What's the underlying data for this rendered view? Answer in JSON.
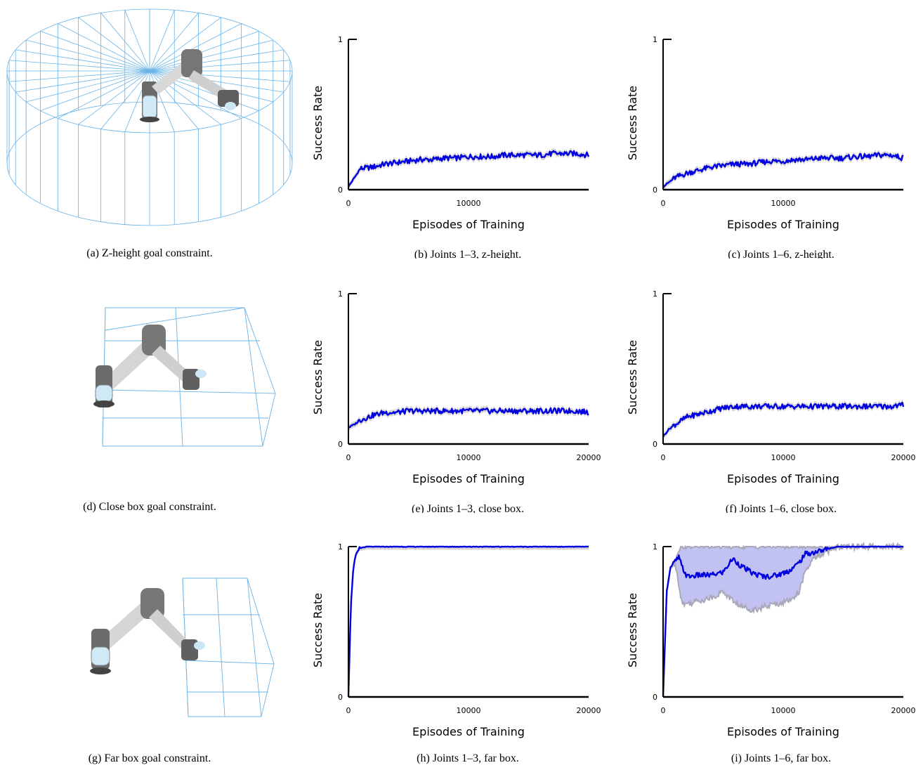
{
  "captions": {
    "a": "(a) Z-height goal constraint.",
    "b": "(b) Joints 1–3, z-height.",
    "c": "(c) Joints 1–6, z-height.",
    "d": "(d) Close box goal constraint.",
    "e": "(e) Joints 1–3, close box.",
    "f": "(f) Joints 1–6, close box.",
    "g": "(g) Far box goal constraint.",
    "h": "(h) Joints 1–3, far box.",
    "i": "(i) Joints 1–6, far box."
  },
  "colors": {
    "line": "#0000e0",
    "band": "#b7b7f0",
    "band_edge": "#a8a8b8",
    "cage": "#5aa8e0",
    "robot": "#7a7a7a"
  },
  "chart_data": [
    {
      "id": "b",
      "type": "line",
      "xlabel": "Episodes of Training",
      "ylabel": "Success Rate",
      "xlim": [
        0,
        20000
      ],
      "ylim": [
        0,
        1
      ],
      "xticks": [
        "0",
        "10000"
      ],
      "yticks": [
        "0",
        "1"
      ],
      "series": [
        {
          "x": [
            0,
            500,
            1000,
            2000,
            3000,
            4000,
            5000,
            6000,
            7000,
            8000,
            9000,
            10000,
            11000,
            12000,
            13000,
            14000,
            15000,
            16000,
            17000,
            18000,
            19000,
            20000
          ],
          "y": [
            0.02,
            0.08,
            0.14,
            0.15,
            0.17,
            0.18,
            0.19,
            0.2,
            0.2,
            0.21,
            0.21,
            0.22,
            0.22,
            0.22,
            0.23,
            0.23,
            0.23,
            0.23,
            0.24,
            0.24,
            0.24,
            0.23
          ]
        }
      ]
    },
    {
      "id": "c",
      "type": "line",
      "xlabel": "Episodes of Training",
      "ylabel": "Success Rate",
      "xlim": [
        0,
        20000
      ],
      "ylim": [
        0,
        1
      ],
      "xticks": [
        "0",
        "10000"
      ],
      "yticks": [
        "0",
        "1"
      ],
      "series": [
        {
          "x": [
            0,
            500,
            1000,
            2000,
            3000,
            4000,
            5000,
            6000,
            7000,
            8000,
            9000,
            10000,
            11000,
            12000,
            13000,
            14000,
            15000,
            16000,
            17000,
            18000,
            19000,
            20000
          ],
          "y": [
            0.02,
            0.05,
            0.08,
            0.11,
            0.13,
            0.15,
            0.16,
            0.17,
            0.17,
            0.18,
            0.19,
            0.19,
            0.2,
            0.2,
            0.21,
            0.21,
            0.21,
            0.22,
            0.22,
            0.23,
            0.23,
            0.21
          ]
        }
      ]
    },
    {
      "id": "e",
      "type": "line",
      "xlabel": "Episodes of Training",
      "ylabel": "Success Rate",
      "xlim": [
        0,
        20000
      ],
      "ylim": [
        0,
        1
      ],
      "xticks": [
        "0",
        "10000",
        "20000"
      ],
      "yticks": [
        "0",
        "1"
      ],
      "series": [
        {
          "x": [
            0,
            500,
            1000,
            2000,
            3000,
            4000,
            5000,
            6000,
            7000,
            8000,
            9000,
            10000,
            11000,
            12000,
            13000,
            14000,
            15000,
            16000,
            17000,
            18000,
            19000,
            20000
          ],
          "y": [
            0.11,
            0.13,
            0.16,
            0.19,
            0.21,
            0.21,
            0.22,
            0.22,
            0.22,
            0.22,
            0.22,
            0.22,
            0.22,
            0.22,
            0.22,
            0.22,
            0.22,
            0.22,
            0.22,
            0.22,
            0.22,
            0.21
          ]
        }
      ]
    },
    {
      "id": "f",
      "type": "line",
      "xlabel": "Episodes of Training",
      "ylabel": "Success Rate",
      "xlim": [
        0,
        20000
      ],
      "ylim": [
        0,
        1
      ],
      "xticks": [
        "0",
        "10000",
        "20000"
      ],
      "yticks": [
        "0",
        "1"
      ],
      "series": [
        {
          "x": [
            0,
            500,
            1000,
            2000,
            3000,
            4000,
            5000,
            6000,
            7000,
            8000,
            9000,
            10000,
            11000,
            12000,
            13000,
            14000,
            15000,
            16000,
            17000,
            18000,
            19000,
            20000
          ],
          "y": [
            0.05,
            0.1,
            0.13,
            0.18,
            0.2,
            0.22,
            0.24,
            0.25,
            0.25,
            0.25,
            0.25,
            0.25,
            0.25,
            0.25,
            0.25,
            0.25,
            0.25,
            0.25,
            0.25,
            0.25,
            0.25,
            0.26
          ]
        }
      ]
    },
    {
      "id": "h",
      "type": "line",
      "xlabel": "Episodes of Training",
      "ylabel": "Success Rate",
      "xlim": [
        0,
        20000
      ],
      "ylim": [
        0,
        1
      ],
      "xticks": [
        "0",
        "10000",
        "20000"
      ],
      "yticks": [
        "0",
        "1"
      ],
      "series": [
        {
          "x": [
            0,
            200,
            400,
            600,
            800,
            1000,
            1500,
            2000,
            4000,
            6000,
            8000,
            10000,
            12000,
            14000,
            16000,
            18000,
            20000
          ],
          "y": [
            0,
            0.6,
            0.85,
            0.94,
            0.97,
            0.99,
            1,
            1,
            1,
            1,
            1,
            1,
            1,
            1,
            1,
            1,
            1
          ]
        }
      ]
    },
    {
      "id": "i",
      "type": "line",
      "xlabel": "Episodes of Training",
      "ylabel": "Success Rate",
      "xlim": [
        0,
        20000
      ],
      "ylim": [
        0,
        1
      ],
      "xticks": [
        "0",
        "10000",
        "20000"
      ],
      "yticks": [
        "0",
        "1"
      ],
      "series": [
        {
          "x": [
            0,
            300,
            600,
            1000,
            1300,
            1600,
            2000,
            3000,
            4000,
            5000,
            5800,
            6500,
            7500,
            8500,
            9500,
            10500,
            11300,
            11800,
            12500,
            13500,
            14500,
            16000,
            18000,
            20000
          ],
          "y": [
            0,
            0.7,
            0.86,
            0.9,
            0.93,
            0.86,
            0.8,
            0.81,
            0.81,
            0.83,
            0.92,
            0.87,
            0.82,
            0.8,
            0.81,
            0.84,
            0.89,
            0.95,
            0.96,
            0.98,
            1,
            1,
            1,
            1
          ],
          "lower": [
            0,
            0.7,
            0.86,
            0.9,
            0.75,
            0.62,
            0.62,
            0.64,
            0.66,
            0.7,
            0.64,
            0.6,
            0.58,
            0.6,
            0.62,
            0.64,
            0.7,
            0.82,
            0.92,
            0.96,
            1,
            1,
            1,
            1
          ],
          "upper": [
            0,
            0.7,
            0.86,
            0.9,
            0.98,
            1,
            1,
            1,
            1,
            1,
            1,
            1,
            1,
            1,
            1,
            1,
            1,
            1,
            1,
            1,
            1,
            1,
            1,
            1
          ]
        }
      ]
    }
  ]
}
